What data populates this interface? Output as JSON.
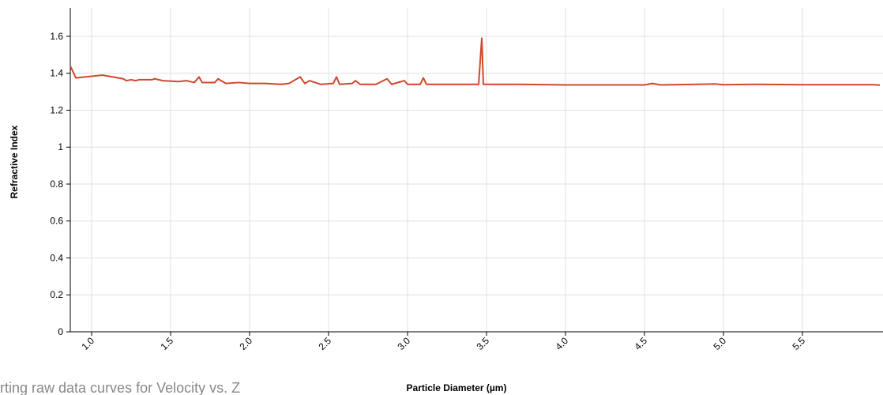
{
  "chart_data": {
    "type": "line",
    "x_label": "Particle Diameter (µm)",
    "y_label": "Refractive Index",
    "background_text": "rting raw data curves for Velocity vs. Z",
    "xlim": [
      0.865,
      6.01
    ],
    "ylim": [
      0,
      1.754
    ],
    "xticks": [
      {
        "value": 1,
        "label": "1.0"
      },
      1.5,
      {
        "value": 2,
        "label": "2.0"
      },
      2.5,
      {
        "value": 3,
        "label": "3.0"
      },
      3.5,
      {
        "value": 4,
        "label": "4.0"
      },
      4.5,
      {
        "value": 5,
        "label": "5.0"
      },
      5.5
    ],
    "yticks": [
      0,
      0.2,
      0.4,
      0.6,
      0.8,
      1,
      1.2,
      1.4,
      1.6
    ],
    "grid": true,
    "series": [
      {
        "name": "Refractive Index",
        "color": "#d0482c",
        "x": [
          0.865,
          0.9,
          1.07,
          1.2,
          1.22,
          1.25,
          1.28,
          1.3,
          1.38,
          1.4,
          1.45,
          1.55,
          1.6,
          1.65,
          1.68,
          1.7,
          1.78,
          1.8,
          1.85,
          1.93,
          2.0,
          2.1,
          2.2,
          2.25,
          2.32,
          2.35,
          2.38,
          2.45,
          2.53,
          2.55,
          2.57,
          2.65,
          2.67,
          2.7,
          2.8,
          2.87,
          2.9,
          2.98,
          3.0,
          3.08,
          3.1,
          3.12,
          3.3,
          3.45,
          3.47,
          3.48,
          3.7,
          4.0,
          4.5,
          4.55,
          4.6,
          4.95,
          5.0,
          5.2,
          5.5,
          5.95,
          5.99
        ],
        "values": [
          1.44,
          1.375,
          1.39,
          1.37,
          1.36,
          1.365,
          1.36,
          1.365,
          1.365,
          1.37,
          1.36,
          1.355,
          1.36,
          1.35,
          1.38,
          1.35,
          1.35,
          1.37,
          1.345,
          1.35,
          1.345,
          1.345,
          1.34,
          1.345,
          1.38,
          1.345,
          1.36,
          1.34,
          1.345,
          1.38,
          1.34,
          1.345,
          1.36,
          1.34,
          1.34,
          1.37,
          1.34,
          1.36,
          1.34,
          1.34,
          1.375,
          1.34,
          1.34,
          1.34,
          1.59,
          1.34,
          1.34,
          1.337,
          1.337,
          1.345,
          1.337,
          1.342,
          1.338,
          1.34,
          1.338,
          1.338,
          1.336
        ]
      }
    ]
  }
}
